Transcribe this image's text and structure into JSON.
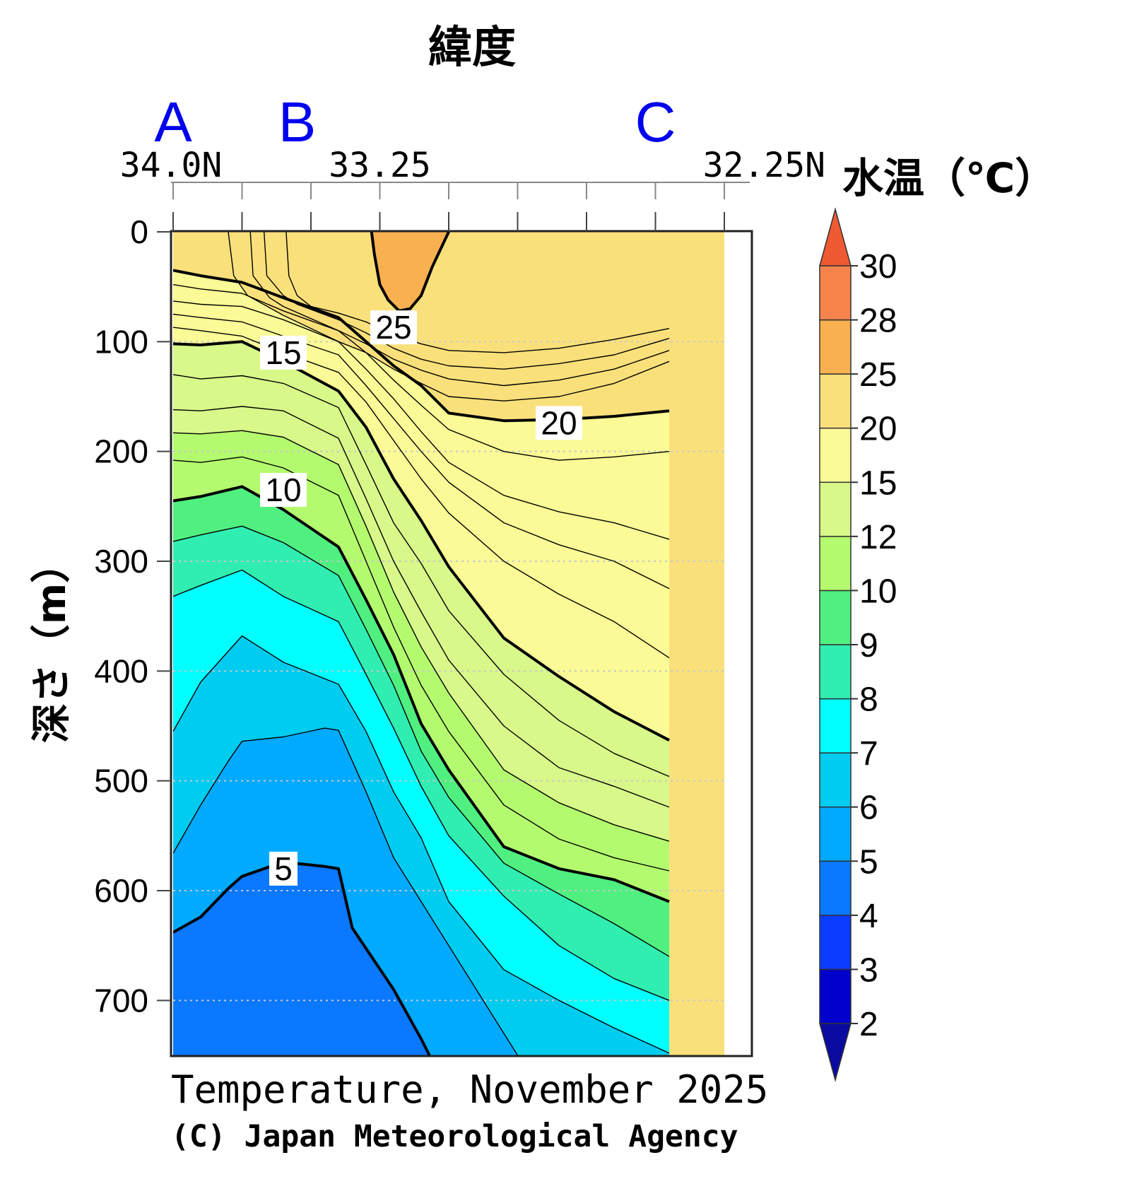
{
  "chart_data": {
    "type": "contour",
    "top_axis_title": "緯度",
    "section_points": [
      {
        "label": "A",
        "lat": 34.0
      },
      {
        "label": "B",
        "lat": 33.55
      },
      {
        "label": "C",
        "lat": 32.25
      }
    ],
    "lat_ticks": [
      {
        "label": "34.0N",
        "lat": 34.0
      },
      {
        "label": "33.25",
        "lat": 33.25
      },
      {
        "label": "32.25N",
        "lat": 32.25
      }
    ],
    "lat_range": [
      34.0,
      31.9
    ],
    "data_lat_range": [
      34.0,
      32.0
    ],
    "ylabel": "深さ（m）",
    "depth_ticks": [
      0,
      100,
      200,
      300,
      400,
      500,
      600,
      700
    ],
    "depth_range": [
      0,
      750
    ],
    "colorbar": {
      "title": "水温（℃）",
      "levels": [
        2,
        3,
        4,
        5,
        6,
        7,
        8,
        9,
        10,
        12,
        15,
        20,
        25,
        28,
        30
      ],
      "colors": [
        "#0a0aa0",
        "#0000cd",
        "#0a3cff",
        "#0a78ff",
        "#00aaff",
        "#00ccf0",
        "#00ffff",
        "#30eeb0",
        "#50f080",
        "#b4fa6e",
        "#d8f88a",
        "#fafa96",
        "#fae07a",
        "#f8b050",
        "#f8844c",
        "#f05a32"
      ]
    },
    "contour_labels": [
      {
        "text": "25",
        "lat": 33.2,
        "depth": 87
      },
      {
        "text": "15",
        "lat": 33.6,
        "depth": 110
      },
      {
        "text": "20",
        "lat": 32.6,
        "depth": 174
      },
      {
        "text": "10",
        "lat": 33.6,
        "depth": 235
      },
      {
        "text": "5",
        "lat": 33.6,
        "depth": 580
      }
    ],
    "isotherms": [
      {
        "t": 5,
        "major": true,
        "pts": [
          [
            34.0,
            638
          ],
          [
            33.9,
            624
          ],
          [
            33.8,
            598
          ],
          [
            33.75,
            587
          ],
          [
            33.6,
            574
          ],
          [
            33.45,
            578
          ],
          [
            33.4,
            580
          ],
          [
            33.35,
            634
          ],
          [
            33.2,
            690
          ],
          [
            33.1,
            735
          ],
          [
            33.07,
            750
          ]
        ]
      },
      {
        "t": 6,
        "major": false,
        "pts": [
          [
            34.0,
            566
          ],
          [
            33.9,
            522
          ],
          [
            33.8,
            482
          ],
          [
            33.75,
            464
          ],
          [
            33.6,
            460
          ],
          [
            33.45,
            452
          ],
          [
            33.4,
            454
          ],
          [
            33.3,
            510
          ],
          [
            33.2,
            570
          ],
          [
            33.0,
            650
          ],
          [
            32.75,
            750
          ]
        ]
      },
      {
        "t": 7,
        "major": false,
        "pts": [
          [
            34.0,
            455
          ],
          [
            33.9,
            410
          ],
          [
            33.75,
            368
          ],
          [
            33.6,
            392
          ],
          [
            33.4,
            412
          ],
          [
            33.3,
            455
          ],
          [
            33.2,
            510
          ],
          [
            33.1,
            552
          ],
          [
            33.0,
            610
          ],
          [
            32.8,
            672
          ],
          [
            32.6,
            700
          ],
          [
            32.4,
            725
          ],
          [
            32.2,
            748
          ]
        ]
      },
      {
        "t": 8,
        "major": false,
        "pts": [
          [
            34.0,
            332
          ],
          [
            33.9,
            322
          ],
          [
            33.75,
            308
          ],
          [
            33.6,
            332
          ],
          [
            33.4,
            355
          ],
          [
            33.3,
            403
          ],
          [
            33.2,
            452
          ],
          [
            33.1,
            505
          ],
          [
            33.0,
            550
          ],
          [
            32.8,
            605
          ],
          [
            32.6,
            650
          ],
          [
            32.4,
            680
          ],
          [
            32.2,
            700
          ]
        ]
      },
      {
        "t": 9,
        "major": false,
        "pts": [
          [
            34.0,
            282
          ],
          [
            33.9,
            276
          ],
          [
            33.75,
            268
          ],
          [
            33.6,
            283
          ],
          [
            33.4,
            313
          ],
          [
            33.3,
            362
          ],
          [
            33.2,
            413
          ],
          [
            33.1,
            473
          ],
          [
            33.0,
            515
          ],
          [
            32.8,
            575
          ],
          [
            32.6,
            603
          ],
          [
            32.4,
            630
          ],
          [
            32.2,
            660
          ]
        ]
      },
      {
        "t": 10,
        "major": true,
        "pts": [
          [
            34.0,
            245
          ],
          [
            33.9,
            241
          ],
          [
            33.75,
            232
          ],
          [
            33.6,
            253
          ],
          [
            33.4,
            287
          ],
          [
            33.3,
            335
          ],
          [
            33.2,
            385
          ],
          [
            33.1,
            448
          ],
          [
            33.0,
            490
          ],
          [
            32.8,
            560
          ],
          [
            32.6,
            580
          ],
          [
            32.4,
            590
          ],
          [
            32.2,
            610
          ]
        ]
      },
      {
        "t": 11,
        "major": false,
        "pts": [
          [
            34.0,
            208
          ],
          [
            33.9,
            210
          ],
          [
            33.75,
            205
          ],
          [
            33.6,
            215
          ],
          [
            33.4,
            240
          ],
          [
            33.3,
            300
          ],
          [
            33.2,
            360
          ],
          [
            33.1,
            413
          ],
          [
            33.0,
            455
          ],
          [
            32.8,
            522
          ],
          [
            32.6,
            553
          ],
          [
            32.4,
            570
          ],
          [
            32.2,
            582
          ]
        ]
      },
      {
        "t": 12,
        "major": false,
        "pts": [
          [
            34.0,
            183
          ],
          [
            33.9,
            184
          ],
          [
            33.75,
            181
          ],
          [
            33.6,
            187
          ],
          [
            33.4,
            212
          ],
          [
            33.3,
            268
          ],
          [
            33.2,
            328
          ],
          [
            33.1,
            378
          ],
          [
            33.0,
            420
          ],
          [
            32.8,
            490
          ],
          [
            32.6,
            520
          ],
          [
            32.4,
            540
          ],
          [
            32.2,
            555
          ]
        ]
      },
      {
        "t": 13,
        "major": false,
        "pts": [
          [
            34.0,
            162
          ],
          [
            33.9,
            163
          ],
          [
            33.75,
            159
          ],
          [
            33.6,
            163
          ],
          [
            33.4,
            188
          ],
          [
            33.3,
            243
          ],
          [
            33.2,
            300
          ],
          [
            33.1,
            346
          ],
          [
            33.0,
            390
          ],
          [
            32.8,
            450
          ],
          [
            32.6,
            488
          ],
          [
            32.4,
            505
          ],
          [
            32.2,
            524
          ]
        ]
      },
      {
        "t": 14,
        "major": false,
        "pts": [
          [
            34.0,
            130
          ],
          [
            33.9,
            134
          ],
          [
            33.75,
            131
          ],
          [
            33.6,
            138
          ],
          [
            33.4,
            160
          ],
          [
            33.3,
            212
          ],
          [
            33.2,
            265
          ],
          [
            33.1,
            302
          ],
          [
            33.0,
            345
          ],
          [
            32.8,
            403
          ],
          [
            32.6,
            445
          ],
          [
            32.4,
            475
          ],
          [
            32.2,
            496
          ]
        ]
      },
      {
        "t": 15,
        "major": true,
        "pts": [
          [
            34.0,
            102
          ],
          [
            33.9,
            103
          ],
          [
            33.75,
            100
          ],
          [
            33.6,
            118
          ],
          [
            33.4,
            145
          ],
          [
            33.3,
            178
          ],
          [
            33.2,
            225
          ],
          [
            33.1,
            263
          ],
          [
            33.0,
            305
          ],
          [
            32.8,
            370
          ],
          [
            32.6,
            405
          ],
          [
            32.4,
            437
          ],
          [
            32.2,
            463
          ]
        ]
      },
      {
        "t": 16,
        "major": false,
        "pts": [
          [
            34.0,
            87
          ],
          [
            33.9,
            90
          ],
          [
            33.75,
            95
          ],
          [
            33.6,
            110
          ],
          [
            33.4,
            128
          ],
          [
            33.3,
            155
          ],
          [
            33.2,
            190
          ],
          [
            33.1,
            225
          ],
          [
            33.0,
            256
          ],
          [
            32.8,
            300
          ],
          [
            32.6,
            330
          ],
          [
            32.4,
            355
          ],
          [
            32.2,
            388
          ]
        ]
      },
      {
        "t": 17,
        "major": false,
        "pts": [
          [
            34.0,
            75
          ],
          [
            33.9,
            78
          ],
          [
            33.75,
            82
          ],
          [
            33.6,
            95
          ],
          [
            33.4,
            112
          ],
          [
            33.3,
            140
          ],
          [
            33.2,
            170
          ],
          [
            33.1,
            200
          ],
          [
            33.0,
            228
          ],
          [
            32.8,
            265
          ],
          [
            32.6,
            285
          ],
          [
            32.4,
            300
          ],
          [
            32.2,
            325
          ]
        ]
      },
      {
        "t": 18,
        "major": false,
        "pts": [
          [
            34.0,
            63
          ],
          [
            33.9,
            66
          ],
          [
            33.75,
            68
          ],
          [
            33.6,
            80
          ],
          [
            33.4,
            100
          ],
          [
            33.3,
            125
          ],
          [
            33.2,
            152
          ],
          [
            33.1,
            182
          ],
          [
            33.0,
            210
          ],
          [
            32.8,
            240
          ],
          [
            32.6,
            255
          ],
          [
            32.4,
            265
          ],
          [
            32.2,
            280
          ]
        ]
      },
      {
        "t": 19,
        "major": false,
        "pts": [
          [
            34.0,
            48
          ],
          [
            33.9,
            52
          ],
          [
            33.75,
            56
          ],
          [
            33.6,
            72
          ],
          [
            33.4,
            90
          ],
          [
            33.3,
            110
          ],
          [
            33.2,
            135
          ],
          [
            33.1,
            158
          ],
          [
            33.0,
            180
          ],
          [
            32.8,
            200
          ],
          [
            32.6,
            208
          ],
          [
            32.4,
            205
          ],
          [
            32.2,
            200
          ]
        ]
      },
      {
        "t": 20,
        "major": true,
        "pts": [
          [
            34.0,
            35
          ],
          [
            33.9,
            40
          ],
          [
            33.75,
            46
          ],
          [
            33.6,
            60
          ],
          [
            33.4,
            78
          ],
          [
            33.3,
            100
          ],
          [
            33.2,
            122
          ],
          [
            33.1,
            140
          ],
          [
            33.0,
            165
          ],
          [
            32.8,
            172
          ],
          [
            32.6,
            171
          ],
          [
            32.4,
            168
          ],
          [
            32.2,
            163
          ]
        ]
      },
      {
        "t": 21,
        "major": false,
        "pts": [
          [
            33.8,
            0
          ],
          [
            33.78,
            40
          ],
          [
            33.73,
            58
          ],
          [
            33.6,
            76
          ],
          [
            33.4,
            100
          ],
          [
            33.3,
            110
          ],
          [
            33.2,
            125
          ],
          [
            33.1,
            138
          ],
          [
            33.0,
            150
          ],
          [
            32.8,
            154
          ],
          [
            32.6,
            150
          ],
          [
            32.4,
            138
          ],
          [
            32.2,
            118
          ]
        ]
      },
      {
        "t": 22,
        "major": false,
        "pts": [
          [
            33.72,
            0
          ],
          [
            33.71,
            40
          ],
          [
            33.65,
            60
          ],
          [
            33.6,
            68
          ],
          [
            33.4,
            90
          ],
          [
            33.3,
            102
          ],
          [
            33.2,
            116
          ],
          [
            33.1,
            126
          ],
          [
            33.0,
            134
          ],
          [
            32.8,
            140
          ],
          [
            32.6,
            135
          ],
          [
            32.4,
            125
          ],
          [
            32.2,
            108
          ]
        ]
      },
      {
        "t": 23,
        "major": false,
        "pts": [
          [
            33.67,
            0
          ],
          [
            33.66,
            40
          ],
          [
            33.6,
            58
          ],
          [
            33.55,
            66
          ],
          [
            33.4,
            80
          ],
          [
            33.3,
            92
          ],
          [
            33.2,
            106
          ],
          [
            33.1,
            116
          ],
          [
            33.0,
            122
          ],
          [
            32.8,
            125
          ],
          [
            32.6,
            120
          ],
          [
            32.4,
            112
          ],
          [
            32.2,
            97
          ]
        ]
      },
      {
        "t": 24,
        "major": false,
        "pts": [
          [
            33.59,
            0
          ],
          [
            33.58,
            40
          ],
          [
            33.55,
            58
          ],
          [
            33.5,
            68
          ],
          [
            33.4,
            74
          ],
          [
            33.3,
            82
          ],
          [
            33.2,
            94
          ],
          [
            33.1,
            102
          ],
          [
            33.0,
            108
          ],
          [
            32.8,
            110
          ],
          [
            32.6,
            106
          ],
          [
            32.4,
            98
          ],
          [
            32.2,
            88
          ]
        ]
      }
    ],
    "warm_core_25": [
      [
        33.28,
        0
      ],
      [
        33.27,
        20
      ],
      [
        33.25,
        48
      ],
      [
        33.22,
        62
      ],
      [
        33.18,
        72
      ],
      [
        33.14,
        70
      ],
      [
        33.1,
        58
      ],
      [
        33.06,
        32
      ],
      [
        33.0,
        0
      ]
    ]
  },
  "caption_line1": "Temperature, November 2025",
  "caption_line2": "(C) Japan Meteorological Agency"
}
